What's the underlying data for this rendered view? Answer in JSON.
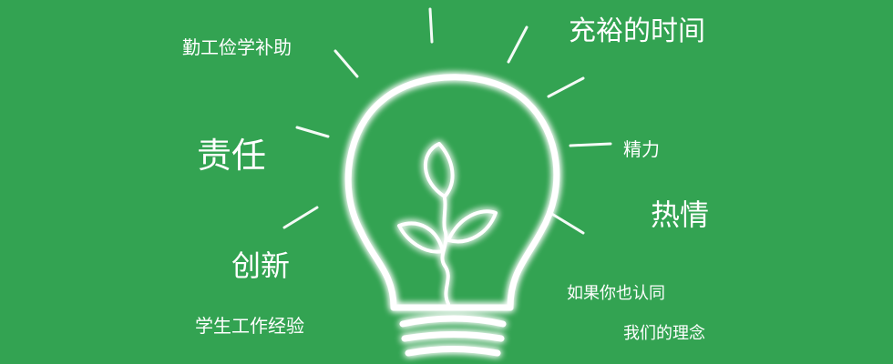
{
  "words": {
    "qingong": "勤工俭学补助",
    "time": "充裕的时间",
    "zeren": "责任",
    "jingli": "精力",
    "reqing": "热情",
    "chuangxin": "创新",
    "ruguo": "如果你也认同",
    "jingyan": "学生工作经验",
    "linian": "我们的理念"
  },
  "icons": {
    "bulb": "lightbulb-icon",
    "sprout": "sprout-icon"
  },
  "colors": {
    "background": "#33a352",
    "text": "#ffffff",
    "glow": "#ffffff"
  }
}
